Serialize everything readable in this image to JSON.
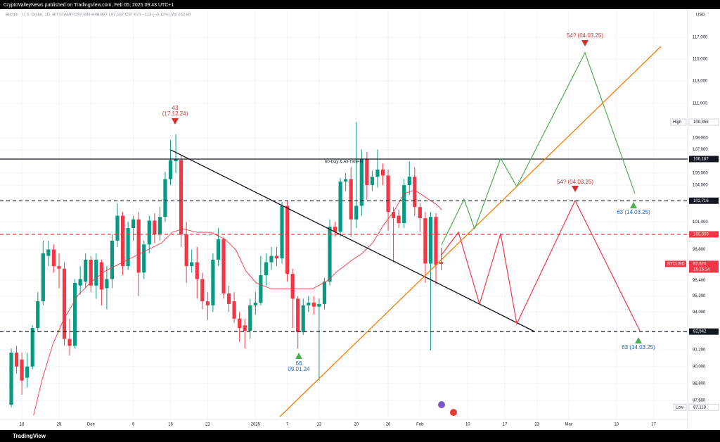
{
  "header": {
    "publisher": "CryptoValleyNews published on TradingView.com, Feb 05, 2025 09:43 UTC+1",
    "legend": "Bitcoin · U.S. Dollar, 1D, BITSTAMP  O97,809 H98,937 L97,187 C97,673 −113 (−0.12%)  Vol 252.85"
  },
  "footer": {
    "brand": "TradingView"
  },
  "chart_data": {
    "type": "candlestick",
    "currency": "USD",
    "log": true,
    "grid": true,
    "up_color": "#089981",
    "down_color": "#f23645",
    "xlim": [
      -2.12,
      127.42
    ],
    "ylim": [
      86280,
      119530
    ],
    "xticks": [
      {
        "value": 2,
        "label": "18"
      },
      {
        "value": 9,
        "label": "25"
      },
      {
        "value": 15,
        "label": "Dec"
      },
      {
        "value": 23,
        "label": "9"
      },
      {
        "value": 30,
        "label": "16"
      },
      {
        "value": 37,
        "label": "23"
      },
      {
        "value": 46,
        "label": "2025"
      },
      {
        "value": 52,
        "label": "7"
      },
      {
        "value": 58,
        "label": "13"
      },
      {
        "value": 65,
        "label": "20"
      },
      {
        "value": 71,
        "label": "26"
      },
      {
        "value": 77,
        "label": "Feb"
      },
      {
        "value": 86,
        "label": "10"
      },
      {
        "value": 93,
        "label": "17"
      },
      {
        "value": 99,
        "label": "23"
      },
      {
        "value": 105,
        "label": "Mar"
      },
      {
        "value": 114,
        "label": "10"
      },
      {
        "value": 121,
        "label": "17"
      }
    ],
    "yticks": [
      {
        "value": 117000,
        "label": "117,000"
      },
      {
        "value": 115000,
        "label": "115,000"
      },
      {
        "value": 113000,
        "label": "113,000"
      },
      {
        "value": 111000,
        "label": "111,000"
      },
      {
        "value": 108000,
        "label": "108,000"
      },
      {
        "value": 107000,
        "label": "107,000"
      },
      {
        "value": 105000,
        "label": "105,000"
      },
      {
        "value": 104000,
        "label": "104,000"
      },
      {
        "value": 101000,
        "label": "101,000"
      },
      {
        "value": 98800,
        "label": "98,800"
      },
      {
        "value": 96400,
        "label": "96,400"
      },
      {
        "value": 95200,
        "label": "95,200"
      },
      {
        "value": 94000,
        "label": "94,000"
      },
      {
        "value": 91200,
        "label": "91,200"
      },
      {
        "value": 90000,
        "label": "90,000"
      },
      {
        "value": 88800,
        "label": "88,800"
      },
      {
        "value": 87600,
        "label": "87,600"
      }
    ],
    "open": [
      87300,
      91000,
      90500,
      89200,
      90000,
      92800,
      94800,
      98300,
      98800,
      97500,
      97300,
      92000,
      91500,
      96000,
      96300,
      98000,
      96000,
      97800,
      95800,
      96500,
      99500,
      101500,
      97500,
      100500,
      101200,
      97000,
      99200,
      101100,
      100000,
      101400,
      104500,
      106000,
      106100,
      100000,
      97500,
      97800,
      96500,
      94800,
      94500,
      98000,
      99600,
      95400,
      94800,
      93500,
      93000,
      92600,
      94500,
      94700,
      96800,
      97800,
      98300,
      98100,
      102300,
      96900,
      95000,
      92500,
      94500,
      94700,
      94400,
      94600,
      96300,
      100600,
      100200,
      104300,
      104500,
      101200,
      102300,
      106200,
      104000,
      104700,
      105300,
      104800,
      101800,
      101500,
      100900,
      104000,
      104700,
      102200,
      101300,
      97700,
      101400,
      97809
    ],
    "high": [
      91300,
      91500,
      91000,
      91000,
      93000,
      95500,
      99500,
      99500,
      99200,
      98500,
      97800,
      93500,
      96500,
      97500,
      98500,
      98300,
      98500,
      98000,
      97500,
      100000,
      102500,
      101800,
      101000,
      101500,
      101800,
      99500,
      101500,
      101700,
      102200,
      105100,
      107800,
      108300,
      106500,
      101000,
      98800,
      99000,
      97000,
      95500,
      98500,
      100500,
      99800,
      96000,
      95500,
      94000,
      93500,
      95000,
      95500,
      98300,
      98500,
      99000,
      99000,
      102600,
      102700,
      97300,
      95200,
      95000,
      95200,
      95200,
      95000,
      96600,
      101200,
      101000,
      104600,
      105000,
      105500,
      109356,
      107000,
      106800,
      105200,
      107000,
      105800,
      105300,
      102200,
      102000,
      104500,
      106000,
      105500,
      102500,
      101800,
      101800,
      101700,
      98937
    ],
    "low": [
      87119,
      89500,
      88000,
      88500,
      89800,
      92500,
      94500,
      97500,
      97000,
      95800,
      91500,
      90800,
      91300,
      95300,
      95800,
      95500,
      95000,
      94500,
      94200,
      95800,
      99000,
      96800,
      97200,
      99500,
      95200,
      96500,
      98500,
      99300,
      99500,
      101000,
      104000,
      105000,
      99000,
      96200,
      97000,
      95000,
      94200,
      93400,
      94000,
      97500,
      95000,
      94000,
      93200,
      91800,
      91300,
      92000,
      93800,
      94500,
      96000,
      97200,
      97500,
      97700,
      96300,
      92800,
      91300,
      92300,
      94000,
      93800,
      89000,
      94200,
      96000,
      99800,
      99800,
      103500,
      99800,
      100500,
      101500,
      102800,
      103500,
      103800,
      104000,
      100300,
      97800,
      100500,
      100500,
      103200,
      101500,
      100200,
      96200,
      91200,
      96100,
      97187
    ],
    "close": [
      91000,
      90000,
      89000,
      90000,
      92800,
      94800,
      98500,
      98800,
      97500,
      97300,
      92000,
      91500,
      96200,
      96500,
      98000,
      96000,
      98000,
      95700,
      96500,
      99500,
      101500,
      97500,
      100500,
      101200,
      97000,
      99200,
      101100,
      100000,
      101400,
      104500,
      106100,
      106200,
      100000,
      97500,
      97800,
      96500,
      94800,
      94500,
      98000,
      99600,
      95400,
      94600,
      93500,
      92800,
      92600,
      94500,
      94700,
      96800,
      97800,
      98300,
      98100,
      102300,
      96900,
      95000,
      92500,
      94500,
      94700,
      94400,
      94600,
      96300,
      100600,
      100200,
      104300,
      104500,
      101200,
      102300,
      106200,
      104000,
      104700,
      105300,
      104800,
      101800,
      101300,
      100900,
      104000,
      104700,
      102200,
      101300,
      97700,
      101400,
      97600,
      97673
    ],
    "ma": {
      "color": "#f23645",
      "x": [
        4.2,
        5.8,
        7.8,
        9.8,
        12.5,
        15.1,
        17.7,
        20.4,
        23.0,
        25.7,
        28.3,
        30.3,
        32.3,
        35.0,
        37.6,
        40.3,
        42.3,
        44.2,
        46.2,
        48.9,
        51.5,
        54.2,
        56.8,
        59.5,
        61.5,
        64.1,
        66.1,
        68.1,
        70.1,
        72.1,
        74.0,
        76.0,
        78.0,
        80.0,
        81.1
      ],
      "values": [
        86560,
        89040,
        91570,
        93380,
        95230,
        96300,
        97120,
        97680,
        98220,
        98770,
        99320,
        100160,
        100440,
        100160,
        100160,
        99600,
        98770,
        97120,
        96190,
        95760,
        95760,
        95760,
        95760,
        96360,
        97120,
        97940,
        98490,
        99320,
        100720,
        101860,
        103300,
        103590,
        103010,
        102440,
        101980
      ]
    },
    "price_labels": [
      {
        "tag": "High",
        "value": 109356,
        "label": "109,356"
      },
      {
        "value": 106187,
        "label": "106,187",
        "line": "solid",
        "color": "#131722"
      },
      {
        "value": 102716,
        "label": "102,716",
        "line": "dashed",
        "color": "#131722"
      },
      {
        "value": 100000,
        "label": "100,000",
        "line": "dashed",
        "color": "#f23645"
      },
      {
        "tag": "BTCUSD",
        "value": 97673,
        "label": "97,673",
        "timer": "15:16:24",
        "color": "#f23645"
      },
      {
        "value": 92542,
        "label": "92,542",
        "line": "dashed",
        "color": "#131722"
      },
      {
        "tag": "Low",
        "value": 87119,
        "label": "87,119"
      }
    ],
    "annotations": {
      "count_43": "43",
      "date_43": "(17.12.24)",
      "count_66": "66",
      "date_66": "09.01.24",
      "green_top": "54? (04.03.25)",
      "red_top": "54? (04.03.25)",
      "green_bottom": "63 (14.03.25)",
      "red_bottom": "63 (14.03.25)",
      "ath_note": "60-Day & All-Time H"
    }
  }
}
